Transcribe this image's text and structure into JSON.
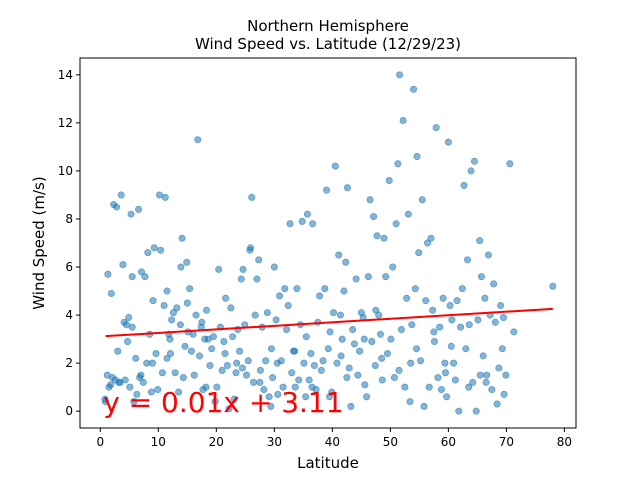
{
  "chart_data": {
    "type": "scatter",
    "title": "Northern Hemisphere",
    "subtitle": "Wind Speed vs. Latitude (12/29/23)",
    "xlabel": "Latitude",
    "ylabel": "Wind Speed (m/s)",
    "xlim": [
      -3.5,
      82
    ],
    "ylim": [
      -0.7,
      14.7
    ],
    "xticks": [
      "0",
      "10",
      "20",
      "30",
      "40",
      "50",
      "60",
      "70",
      "80"
    ],
    "yticks": [
      "0",
      "2",
      "4",
      "6",
      "8",
      "10",
      "12",
      "14"
    ],
    "grid": false,
    "point_color": "#1f77b4",
    "line_color": "#ff0000",
    "regression": {
      "slope": 0.01473,
      "intercept": 3.11,
      "x_range": [
        0.9,
        78
      ],
      "equation": "y = 0.01x + 3.11"
    },
    "points": [
      [
        0.9,
        0.4
      ],
      [
        1.2,
        1.5
      ],
      [
        1.3,
        5.7
      ],
      [
        1.5,
        1.0
      ],
      [
        1.8,
        1.1
      ],
      [
        2.1,
        1.4
      ],
      [
        2.3,
        8.6
      ],
      [
        2.6,
        1.3
      ],
      [
        2.8,
        8.5
      ],
      [
        3.0,
        2.5
      ],
      [
        3.2,
        1.2
      ],
      [
        3.6,
        9.0
      ],
      [
        3.9,
        6.1
      ],
      [
        4.1,
        3.7
      ],
      [
        4.3,
        1.3
      ],
      [
        4.5,
        3.6
      ],
      [
        4.7,
        2.9
      ],
      [
        4.9,
        3.9
      ],
      [
        5.1,
        1.0
      ],
      [
        5.3,
        8.2
      ],
      [
        5.5,
        5.6
      ],
      [
        5.8,
        0.4
      ],
      [
        6.1,
        2.2
      ],
      [
        6.3,
        0.7
      ],
      [
        6.6,
        8.4
      ],
      [
        6.8,
        1.4
      ],
      [
        7.1,
        5.8
      ],
      [
        7.4,
        1.2
      ],
      [
        7.7,
        5.6
      ],
      [
        8.0,
        2.0
      ],
      [
        8.2,
        6.6
      ],
      [
        8.5,
        3.2
      ],
      [
        8.8,
        0.8
      ],
      [
        9.1,
        4.6
      ],
      [
        9.3,
        6.8
      ],
      [
        9.6,
        2.4
      ],
      [
        9.9,
        0.9
      ],
      [
        10.2,
        9.0
      ],
      [
        10.4,
        6.7
      ],
      [
        10.7,
        1.6
      ],
      [
        11.0,
        4.4
      ],
      [
        11.2,
        8.9
      ],
      [
        11.5,
        5.0
      ],
      [
        11.8,
        3.2
      ],
      [
        12.1,
        2.4
      ],
      [
        12.3,
        3.8
      ],
      [
        12.6,
        4.1
      ],
      [
        12.9,
        1.6
      ],
      [
        13.2,
        4.3
      ],
      [
        13.5,
        0.8
      ],
      [
        13.8,
        3.6
      ],
      [
        14.1,
        7.2
      ],
      [
        14.3,
        1.4
      ],
      [
        14.6,
        2.7
      ],
      [
        14.9,
        6.2
      ],
      [
        15.1,
        3.3
      ],
      [
        15.4,
        5.1
      ],
      [
        15.7,
        2.5
      ],
      [
        16.0,
        3.2
      ],
      [
        16.2,
        1.5
      ],
      [
        16.5,
        4.0
      ],
      [
        16.8,
        11.3
      ],
      [
        17.1,
        2.3
      ],
      [
        17.4,
        3.5
      ],
      [
        17.7,
        0.9
      ],
      [
        18.0,
        3.0
      ],
      [
        18.3,
        4.2
      ],
      [
        18.6,
        3.0
      ],
      [
        18.9,
        1.9
      ],
      [
        19.2,
        2.6
      ],
      [
        19.5,
        3.1
      ],
      [
        19.8,
        0.4
      ],
      [
        20.1,
        1.0
      ],
      [
        20.4,
        5.9
      ],
      [
        20.7,
        3.5
      ],
      [
        21.0,
        1.7
      ],
      [
        21.3,
        2.9
      ],
      [
        21.6,
        4.7
      ],
      [
        21.9,
        1.9
      ],
      [
        22.2,
        0.1
      ],
      [
        22.5,
        4.3
      ],
      [
        22.8,
        3.1
      ],
      [
        23.1,
        0.5
      ],
      [
        23.4,
        1.6
      ],
      [
        23.7,
        3.4
      ],
      [
        24.0,
        2.5
      ],
      [
        24.3,
        5.5
      ],
      [
        24.6,
        5.9
      ],
      [
        24.9,
        3.6
      ],
      [
        25.2,
        1.5
      ],
      [
        25.5,
        2.1
      ],
      [
        25.8,
        6.7
      ],
      [
        26.1,
        8.9
      ],
      [
        26.4,
        1.2
      ],
      [
        26.7,
        4.0
      ],
      [
        27.0,
        5.5
      ],
      [
        27.3,
        6.3
      ],
      [
        27.6,
        1.7
      ],
      [
        27.9,
        3.5
      ],
      [
        28.2,
        0.9
      ],
      [
        28.5,
        2.1
      ],
      [
        28.8,
        4.1
      ],
      [
        29.1,
        0.6
      ],
      [
        29.4,
        0.2
      ],
      [
        29.7,
        1.4
      ],
      [
        30.0,
        6.0
      ],
      [
        30.3,
        3.8
      ],
      [
        30.6,
        0.7
      ],
      [
        30.9,
        4.8
      ],
      [
        31.2,
        2.1
      ],
      [
        31.5,
        1.0
      ],
      [
        31.8,
        5.1
      ],
      [
        32.1,
        3.4
      ],
      [
        32.4,
        4.4
      ],
      [
        32.7,
        7.8
      ],
      [
        33.0,
        1.6
      ],
      [
        33.3,
        2.5
      ],
      [
        33.6,
        1.0
      ],
      [
        33.9,
        5.1
      ],
      [
        34.2,
        1.3
      ],
      [
        34.5,
        3.6
      ],
      [
        34.8,
        7.9
      ],
      [
        35.1,
        2.0
      ],
      [
        35.4,
        0.6
      ],
      [
        35.7,
        8.2
      ],
      [
        36.0,
        1.3
      ],
      [
        36.3,
        2.4
      ],
      [
        36.6,
        7.8
      ],
      [
        36.9,
        1.9
      ],
      [
        37.2,
        0.9
      ],
      [
        37.5,
        3.7
      ],
      [
        37.8,
        4.8
      ],
      [
        38.1,
        1.7
      ],
      [
        38.4,
        2.1
      ],
      [
        38.7,
        5.1
      ],
      [
        39.0,
        9.2
      ],
      [
        39.3,
        2.6
      ],
      [
        39.6,
        3.3
      ],
      [
        39.9,
        0.8
      ],
      [
        40.2,
        4.1
      ],
      [
        40.5,
        10.2
      ],
      [
        40.8,
        2.0
      ],
      [
        41.1,
        6.5
      ],
      [
        41.4,
        4.0
      ],
      [
        41.7,
        3.0
      ],
      [
        42.0,
        5.0
      ],
      [
        42.3,
        6.2
      ],
      [
        42.6,
        9.3
      ],
      [
        42.9,
        1.8
      ],
      [
        43.2,
        0.2
      ],
      [
        43.5,
        3.4
      ],
      [
        43.8,
        2.8
      ],
      [
        44.1,
        5.5
      ],
      [
        44.4,
        1.5
      ],
      [
        44.7,
        2.5
      ],
      [
        45.0,
        4.1
      ],
      [
        45.3,
        3.9
      ],
      [
        45.6,
        1.1
      ],
      [
        45.9,
        0.6
      ],
      [
        46.2,
        5.6
      ],
      [
        46.5,
        8.8
      ],
      [
        46.8,
        2.9
      ],
      [
        47.1,
        8.1
      ],
      [
        47.4,
        1.9
      ],
      [
        47.7,
        7.3
      ],
      [
        48.0,
        4.0
      ],
      [
        48.3,
        3.2
      ],
      [
        48.6,
        1.3
      ],
      [
        48.9,
        7.2
      ],
      [
        49.2,
        5.6
      ],
      [
        49.5,
        2.4
      ],
      [
        49.8,
        9.6
      ],
      [
        50.1,
        3.0
      ],
      [
        50.4,
        6.0
      ],
      [
        50.7,
        1.4
      ],
      [
        51.0,
        7.8
      ],
      [
        51.3,
        10.3
      ],
      [
        51.6,
        14.0
      ],
      [
        51.9,
        3.4
      ],
      [
        52.2,
        12.1
      ],
      [
        52.5,
        1.0
      ],
      [
        52.8,
        4.7
      ],
      [
        53.1,
        8.2
      ],
      [
        53.4,
        0.4
      ],
      [
        53.7,
        3.6
      ],
      [
        54.0,
        13.4
      ],
      [
        54.3,
        5.1
      ],
      [
        54.6,
        10.6
      ],
      [
        54.9,
        6.6
      ],
      [
        55.2,
        2.1
      ],
      [
        55.5,
        8.8
      ],
      [
        55.8,
        0.2
      ],
      [
        56.1,
        4.6
      ],
      [
        56.4,
        7.0
      ],
      [
        56.7,
        1.0
      ],
      [
        57.0,
        7.2
      ],
      [
        57.3,
        4.2
      ],
      [
        57.6,
        2.9
      ],
      [
        57.9,
        11.8
      ],
      [
        58.2,
        1.4
      ],
      [
        58.5,
        3.5
      ],
      [
        58.8,
        0.9
      ],
      [
        59.1,
        4.7
      ],
      [
        59.4,
        2.0
      ],
      [
        59.7,
        0.6
      ],
      [
        60.0,
        11.2
      ],
      [
        60.3,
        4.4
      ],
      [
        60.6,
        3.8
      ],
      [
        60.9,
        2.0
      ],
      [
        61.2,
        1.3
      ],
      [
        61.5,
        4.6
      ],
      [
        61.8,
        0.0
      ],
      [
        62.1,
        3.5
      ],
      [
        62.4,
        5.1
      ],
      [
        62.7,
        9.4
      ],
      [
        63.0,
        2.6
      ],
      [
        63.3,
        6.3
      ],
      [
        63.6,
        3.6
      ],
      [
        63.9,
        10.0
      ],
      [
        64.2,
        1.2
      ],
      [
        64.5,
        10.4
      ],
      [
        64.8,
        0.0
      ],
      [
        65.1,
        3.8
      ],
      [
        65.4,
        7.1
      ],
      [
        65.7,
        5.6
      ],
      [
        66.0,
        2.3
      ],
      [
        66.3,
        4.7
      ],
      [
        66.6,
        1.5
      ],
      [
        66.9,
        6.5
      ],
      [
        67.2,
        4.0
      ],
      [
        67.5,
        0.9
      ],
      [
        67.8,
        5.3
      ],
      [
        68.1,
        3.7
      ],
      [
        68.4,
        0.3
      ],
      [
        68.7,
        1.8
      ],
      [
        69.0,
        4.4
      ],
      [
        69.3,
        2.6
      ],
      [
        69.6,
        0.7
      ],
      [
        69.9,
        1.5
      ],
      [
        70.6,
        10.3
      ],
      [
        71.3,
        3.3
      ],
      [
        78.0,
        5.2
      ],
      [
        0.8,
        0.5
      ],
      [
        3.4,
        1.2
      ],
      [
        7.0,
        1.5
      ],
      [
        9.0,
        2.0
      ],
      [
        12.0,
        3.0
      ],
      [
        15.0,
        4.5
      ],
      [
        18.2,
        1.0
      ],
      [
        21.5,
        2.4
      ],
      [
        24.5,
        1.8
      ],
      [
        27.5,
        1.2
      ],
      [
        30.5,
        2.0
      ],
      [
        33.5,
        2.5
      ],
      [
        36.5,
        1.0
      ],
      [
        39.5,
        0.6
      ],
      [
        42.5,
        1.4
      ],
      [
        45.5,
        3.0
      ],
      [
        48.5,
        2.2
      ],
      [
        51.5,
        1.7
      ],
      [
        54.5,
        2.6
      ],
      [
        57.5,
        3.3
      ],
      [
        60.5,
        2.7
      ],
      [
        63.5,
        1.0
      ],
      [
        66.5,
        1.2
      ],
      [
        69.5,
        3.9
      ],
      [
        5.5,
        3.5
      ],
      [
        11.5,
        2.2
      ],
      [
        17.5,
        3.7
      ],
      [
        23.5,
        2.0
      ],
      [
        29.5,
        2.6
      ],
      [
        35.5,
        3.1
      ],
      [
        41.5,
        2.3
      ],
      [
        47.5,
        4.2
      ],
      [
        53.5,
        2.0
      ],
      [
        59.5,
        1.6
      ],
      [
        65.5,
        1.5
      ],
      [
        1.9,
        4.9
      ],
      [
        13.9,
        6.0
      ],
      [
        25.9,
        6.8
      ]
    ]
  }
}
